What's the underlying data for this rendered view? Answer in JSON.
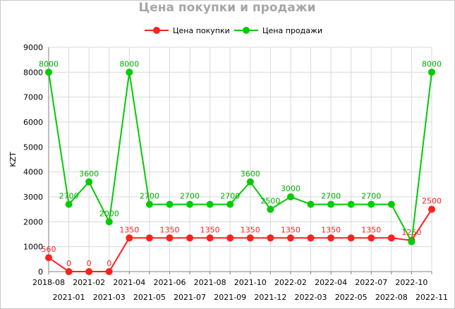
{
  "chart_data": {
    "type": "line",
    "title": "Цена покупки и продажи",
    "ylabel": "KZT",
    "ylim": [
      0,
      9000
    ],
    "yticks": [
      0,
      1000,
      2000,
      3000,
      4000,
      5000,
      6000,
      7000,
      8000,
      9000
    ],
    "grid": true,
    "legend_position": "top",
    "categories": [
      "2018-08",
      "2021-01",
      "2021-02",
      "2021-03",
      "2021-04",
      "2021-05",
      "2021-06",
      "2021-07",
      "2021-08",
      "2021-09",
      "2021-10",
      "2021-12",
      "2022-02",
      "2022-03",
      "2022-04",
      "2022-05",
      "2022-07",
      "2022-08",
      "2022-10",
      "2022-11"
    ],
    "series": [
      {
        "name": "Цена покупки",
        "color": "#ff2020",
        "label_color": "#ff2020",
        "values": [
          560,
          0,
          0,
          0,
          1350,
          1350,
          1350,
          1350,
          1350,
          1350,
          1350,
          1350,
          1350,
          1350,
          1350,
          1350,
          1350,
          1350,
          1250,
          2500
        ],
        "labels": [
          "560",
          "0",
          "0",
          "0",
          "1350",
          "",
          "1350",
          "",
          "1350",
          "",
          "1350",
          "",
          "1350",
          "",
          "1350",
          "",
          "1350",
          "",
          "1250",
          "2500"
        ]
      },
      {
        "name": "Цена продажи",
        "color": "#00cc00",
        "label_color": "#00b000",
        "values": [
          8000,
          2700,
          3600,
          2000,
          8000,
          2700,
          2700,
          2700,
          2700,
          2700,
          3600,
          2500,
          3000,
          2700,
          2700,
          2700,
          2700,
          2700,
          1200,
          8000
        ],
        "labels": [
          "8000",
          "2700",
          "3600",
          "2000",
          "8000",
          "2700",
          "",
          "2700",
          "",
          "2700",
          "3600",
          "2500",
          "3000",
          "",
          "2700",
          "",
          "2700",
          "",
          "",
          "8000"
        ]
      }
    ]
  }
}
